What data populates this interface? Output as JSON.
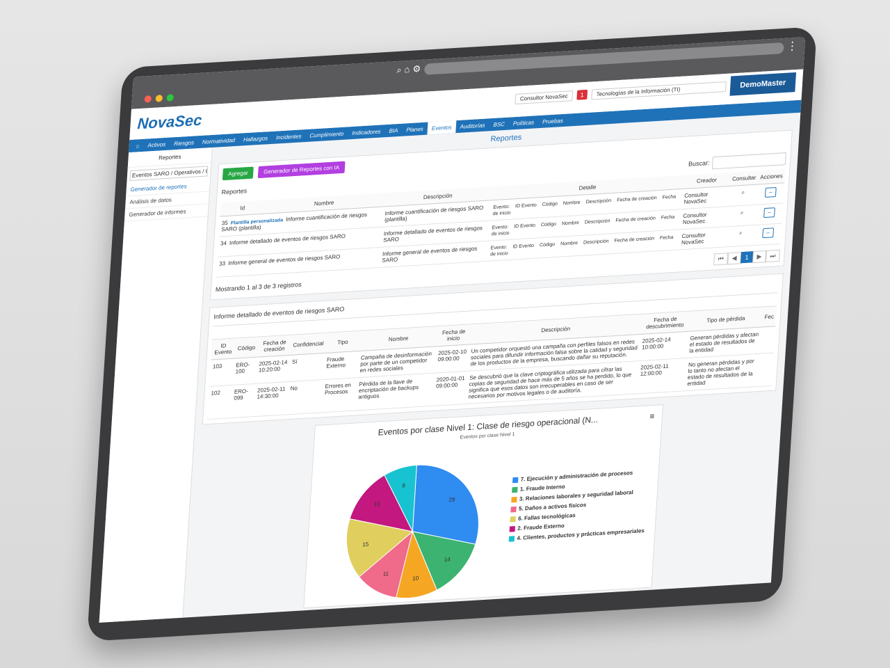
{
  "header": {
    "logo": "NovaSec",
    "user": "Consultor NovaSec",
    "badge": "1",
    "org": "Tecnologías de la Información (TI)",
    "brand": "DemoMaster"
  },
  "nav": [
    "Activos",
    "Riesgos",
    "Normatividad",
    "Hallazgos",
    "Incidentes",
    "Cumplimiento",
    "Indicadores",
    "BIA",
    "Planes",
    "Eventos",
    "Auditorías",
    "BSC",
    "Políticas",
    "Pruebas"
  ],
  "nav_active": "Eventos",
  "sidebar": {
    "title": "Reportes",
    "select": "Eventos SARO / Operativos / Operacio",
    "links": [
      "Generador de reportes",
      "Análisis de datos",
      "Generador de informes"
    ]
  },
  "page_title": "Reportes",
  "toolbar": {
    "add": "Agregar",
    "ai": "Generador de Reportes con IA"
  },
  "reports": {
    "title": "Reportes",
    "search_label": "Buscar:",
    "columns": [
      "Id",
      "Nombre",
      "Descripción",
      "Detalle",
      "Creador",
      "Consultar",
      "Acciones"
    ],
    "rows": [
      {
        "id": 35,
        "tag": "Plantilla personalizada",
        "name": "Informe cuantificación de riesgos SARO (plantilla)",
        "description": "Informe cuantificación de riesgos SARO (plantilla)",
        "detail_label": "Evento:",
        "detail_fields": [
          "ID Evento",
          "Código",
          "Nombre",
          "Descripción",
          "Fecha de creación",
          "Fecha de inicio"
        ],
        "creator": "Consultor NovaSec"
      },
      {
        "id": 34,
        "name": "Informe detallado de eventos de riesgos SARO",
        "description": "Informe detallado de eventos de riesgos SARO",
        "detail_label": "Evento:",
        "detail_fields": [
          "ID Evento",
          "Código",
          "Nombre",
          "Descripción",
          "Fecha de creación",
          "Fecha de inicio"
        ],
        "creator": "Consultor NovaSec"
      },
      {
        "id": 33,
        "name": "Informe general de eventos de riesgos SARO",
        "description": "Informe general de eventos de riesgos SARO",
        "detail_label": "Evento:",
        "detail_fields": [
          "ID Evento",
          "Código",
          "Nombre",
          "Descripción",
          "Fecha de creación",
          "Fecha de inicio"
        ],
        "creator": "Consultor NovaSec"
      }
    ],
    "info": "Mostrando 1 al 3 de 3 registros",
    "page": "1"
  },
  "detail_report": {
    "title": "Informe detallado de eventos de riesgos SARO",
    "columns": [
      "ID Evento",
      "Código",
      "Fecha de creación",
      "Confidencial",
      "Tipo",
      "Nombre",
      "Fecha de inicio",
      "Descripción",
      "Fecha de descubrimiento",
      "Tipo de pérdida",
      "Fec"
    ],
    "rows": [
      [
        "103",
        "ERO-100",
        "2025-02-14 10:20:00",
        "Sí",
        "Fraude Externo",
        "Campaña de desinformación por parte de un competidor en redes sociales",
        "2025-02-10 09:00:00",
        "Un competidor orquestó una campaña con perfiles falsos en redes sociales para difundir información falsa sobre la calidad y seguridad de los productos de la empresa, buscando dañar su reputación.",
        "2025-02-14 10:00:00",
        "Generan pérdidas y afectan el estado de resultados de la entidad"
      ],
      [
        "102",
        "ERO-099",
        "2025-02-11 14:30:00",
        "No",
        "Errores en Procesos",
        "Pérdida de la llave de encriptación de backups antiguos",
        "2020-01-01 09:00:00",
        "Se descubrió que la clave criptográfica utilizada para cifrar las copias de seguridad de hace más de 5 años se ha perdido, lo que significa que esos datos son irrecuperables en caso de ser necesarios por motivos legales o de auditoría.",
        "2025-02-11 12:00:00",
        "No generan pérdidas y por lo tanto no afectan el estado de resultados de la entidad"
      ]
    ]
  },
  "chart": {
    "type": "pie",
    "title": "Eventos por clase Nivel 1: Clase de riesgo operacional (N...",
    "subtitle": "Eventos por clase Nivel 1",
    "categories": [
      "7. Ejecución y administración de procesos",
      "1. Fraude Interno",
      "3. Relaciones laborales y seguridad laboral",
      "5. Daños a activos físicos",
      "6. Fallas tecnológicas",
      "2. Fraude Externo",
      "4. Clientes, productos y prácticas empresariales"
    ],
    "values": [
      29,
      14,
      10,
      11,
      15,
      13,
      8
    ],
    "colors": [
      "#2f8cf0",
      "#3cb371",
      "#f5a623",
      "#f06a8a",
      "#e0cf5e",
      "#c2187f",
      "#17c3d0"
    ]
  }
}
